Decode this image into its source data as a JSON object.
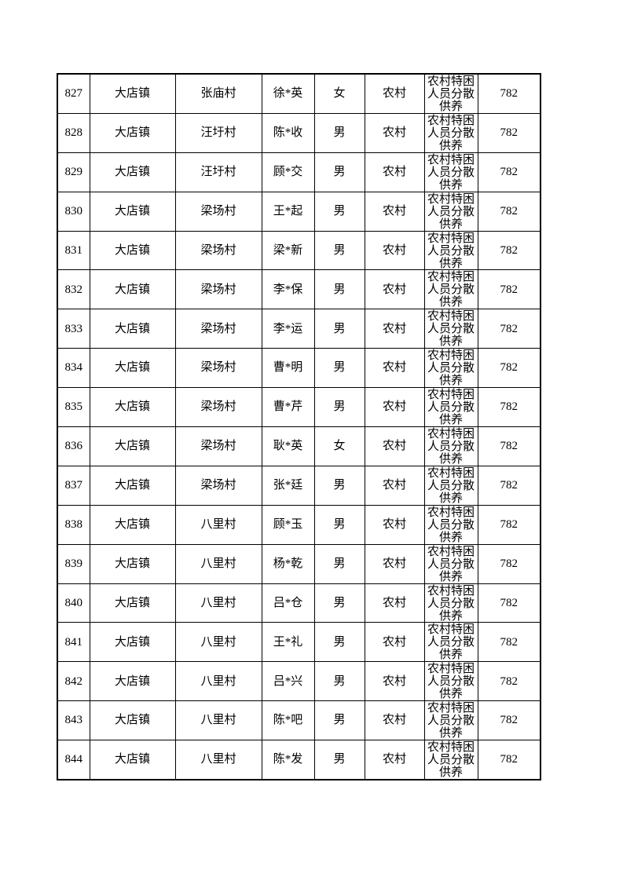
{
  "page": {
    "background_color": "#ffffff",
    "text_color": "#000000",
    "border_color": "#000000"
  },
  "table": {
    "column_keys": [
      "row-number",
      "town",
      "village",
      "person-name",
      "gender",
      "area-type",
      "assistance-category",
      "amount"
    ],
    "rows": [
      [
        "827",
        "大店镇",
        "张庙村",
        "徐*英",
        "女",
        "农村",
        "农村特困人员分散供养",
        "782"
      ],
      [
        "828",
        "大店镇",
        "汪圩村",
        "陈*收",
        "男",
        "农村",
        "农村特困人员分散供养",
        "782"
      ],
      [
        "829",
        "大店镇",
        "汪圩村",
        "顾*交",
        "男",
        "农村",
        "农村特困人员分散供养",
        "782"
      ],
      [
        "830",
        "大店镇",
        "梁场村",
        "王*起",
        "男",
        "农村",
        "农村特困人员分散供养",
        "782"
      ],
      [
        "831",
        "大店镇",
        "梁场村",
        "梁*新",
        "男",
        "农村",
        "农村特困人员分散供养",
        "782"
      ],
      [
        "832",
        "大店镇",
        "梁场村",
        "李*保",
        "男",
        "农村",
        "农村特困人员分散供养",
        "782"
      ],
      [
        "833",
        "大店镇",
        "梁场村",
        "李*运",
        "男",
        "农村",
        "农村特困人员分散供养",
        "782"
      ],
      [
        "834",
        "大店镇",
        "梁场村",
        "曹*明",
        "男",
        "农村",
        "农村特困人员分散供养",
        "782"
      ],
      [
        "835",
        "大店镇",
        "梁场村",
        "曹*芹",
        "男",
        "农村",
        "农村特困人员分散供养",
        "782"
      ],
      [
        "836",
        "大店镇",
        "梁场村",
        "耿*英",
        "女",
        "农村",
        "农村特困人员分散供养",
        "782"
      ],
      [
        "837",
        "大店镇",
        "梁场村",
        "张*廷",
        "男",
        "农村",
        "农村特困人员分散供养",
        "782"
      ],
      [
        "838",
        "大店镇",
        "八里村",
        "顾*玉",
        "男",
        "农村",
        "农村特困人员分散供养",
        "782"
      ],
      [
        "839",
        "大店镇",
        "八里村",
        "杨*乾",
        "男",
        "农村",
        "农村特困人员分散供养",
        "782"
      ],
      [
        "840",
        "大店镇",
        "八里村",
        "吕*仓",
        "男",
        "农村",
        "农村特困人员分散供养",
        "782"
      ],
      [
        "841",
        "大店镇",
        "八里村",
        "王*礼",
        "男",
        "农村",
        "农村特困人员分散供养",
        "782"
      ],
      [
        "842",
        "大店镇",
        "八里村",
        "吕*兴",
        "男",
        "农村",
        "农村特困人员分散供养",
        "782"
      ],
      [
        "843",
        "大店镇",
        "八里村",
        "陈*吧",
        "男",
        "农村",
        "农村特困人员分散供养",
        "782"
      ],
      [
        "844",
        "大店镇",
        "八里村",
        "陈*发",
        "男",
        "农村",
        "农村特困人员分散供养",
        "782"
      ]
    ]
  }
}
